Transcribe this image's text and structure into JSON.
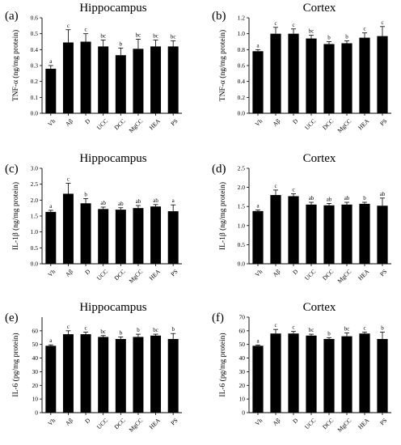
{
  "chart_data": [
    {
      "type": "bar",
      "panel": "(a)",
      "title": "Hippocampus",
      "ylabel": "TNF-α (ng/mg protein)",
      "ylim": [
        0,
        0.6
      ],
      "yticks": [
        "0.0",
        "0.1",
        "0.2",
        "0.3",
        "0.4",
        "0.5",
        "0.6"
      ],
      "categories": [
        "Vh",
        "Aβ",
        "D",
        "UCC",
        "DCC",
        "MgCC",
        "HEA",
        "PS"
      ],
      "values": [
        0.28,
        0.445,
        0.45,
        0.42,
        0.365,
        0.405,
        0.42,
        0.42
      ],
      "errors": [
        0.02,
        0.08,
        0.05,
        0.04,
        0.045,
        0.06,
        0.04,
        0.035
      ],
      "significance": [
        "a",
        "c",
        "c",
        "bc",
        "b",
        "bc",
        "bc",
        "bc"
      ]
    },
    {
      "type": "bar",
      "panel": "(b)",
      "title": "Cortex",
      "ylabel": "TNF-α (ng/mg protein)",
      "ylim": [
        0,
        1.2
      ],
      "yticks": [
        "0.0",
        "0.2",
        "0.4",
        "0.6",
        "0.8",
        "1.0",
        "1.2"
      ],
      "categories": [
        "Vh",
        "Aβ",
        "D",
        "UCC",
        "DCC",
        "MgCC",
        "HEA",
        "PS"
      ],
      "values": [
        0.78,
        1.0,
        1.0,
        0.94,
        0.87,
        0.88,
        0.95,
        0.97
      ],
      "errors": [
        0.02,
        0.08,
        0.06,
        0.04,
        0.03,
        0.03,
        0.06,
        0.12
      ],
      "significance": [
        "a",
        "c",
        "c",
        "bc",
        "b",
        "b",
        "c",
        "c"
      ]
    },
    {
      "type": "bar",
      "panel": "(c)",
      "title": "Hippocampus",
      "ylabel": "IL-1β (ng/mg protein)",
      "ylim": [
        0,
        3.0
      ],
      "yticks": [
        "0.0",
        "0.5",
        "1.0",
        "1.5",
        "2.0",
        "2.5",
        "3.0"
      ],
      "categories": [
        "Vh",
        "Aβ",
        "D",
        "UCC",
        "DCC",
        "MgCC",
        "HEA",
        "PS"
      ],
      "values": [
        1.63,
        2.2,
        1.9,
        1.72,
        1.7,
        1.75,
        1.8,
        1.65
      ],
      "errors": [
        0.05,
        0.33,
        0.15,
        0.06,
        0.06,
        0.08,
        0.06,
        0.2
      ],
      "significance": [
        "a",
        "c",
        "b",
        "ab",
        "ab",
        "ab",
        "ab",
        "a"
      ]
    },
    {
      "type": "bar",
      "panel": "(d)",
      "title": "Cortex",
      "ylabel": "IL-1β (ng/mg protein)",
      "ylim": [
        0,
        2.5
      ],
      "yticks": [
        "0.0",
        "0.5",
        "1.0",
        "1.5",
        "2.0",
        "2.5"
      ],
      "categories": [
        "Vh",
        "Aβ",
        "D",
        "UCC",
        "DCC",
        "MgCC",
        "HEA",
        "PS"
      ],
      "values": [
        1.38,
        1.8,
        1.77,
        1.55,
        1.53,
        1.55,
        1.57,
        1.52
      ],
      "errors": [
        0.03,
        0.13,
        0.06,
        0.06,
        0.05,
        0.06,
        0.04,
        0.2
      ],
      "significance": [
        "a",
        "c",
        "c",
        "ab",
        "ab",
        "ab",
        "b",
        "ab"
      ]
    },
    {
      "type": "bar",
      "panel": "(e)",
      "title": "Hippocampus",
      "ylabel": "IL-6 (pg/mg protein)",
      "ylim": [
        0,
        70
      ],
      "yticks": [
        "0",
        "10",
        "20",
        "30",
        "40",
        "50",
        "60"
      ],
      "categories": [
        "Vh",
        "Aβ",
        "D",
        "UCC",
        "DCC",
        "MgCC",
        "HEA",
        "PS"
      ],
      "values": [
        49,
        57.5,
        57.5,
        55.5,
        54,
        55.5,
        56.5,
        54
      ],
      "errors": [
        0.7,
        2.5,
        1.5,
        1.0,
        1.5,
        2.0,
        1.0,
        4.0
      ],
      "significance": [
        "a",
        "c",
        "c",
        "bc",
        "b",
        "b",
        "bc",
        "b"
      ]
    },
    {
      "type": "bar",
      "panel": "(f)",
      "title": "Cortex",
      "ylabel": "IL-6 (pg/mg protein)",
      "ylim": [
        0,
        70
      ],
      "yticks": [
        "0",
        "10",
        "20",
        "30",
        "40",
        "50",
        "60",
        "70"
      ],
      "categories": [
        "Vh",
        "Aβ",
        "D",
        "UCC",
        "DCC",
        "MgCC",
        "HEA",
        "PS"
      ],
      "values": [
        49,
        58,
        58,
        56.5,
        54,
        56,
        58,
        54
      ],
      "errors": [
        0.5,
        3.0,
        1.5,
        1.0,
        1.0,
        2.5,
        1.0,
        5.0
      ],
      "significance": [
        "a",
        "c",
        "c",
        "bc",
        "b",
        "bc",
        "c",
        "b"
      ]
    }
  ],
  "colors": {
    "bar": "#000000",
    "axis": "#000000",
    "background": "#ffffff"
  }
}
